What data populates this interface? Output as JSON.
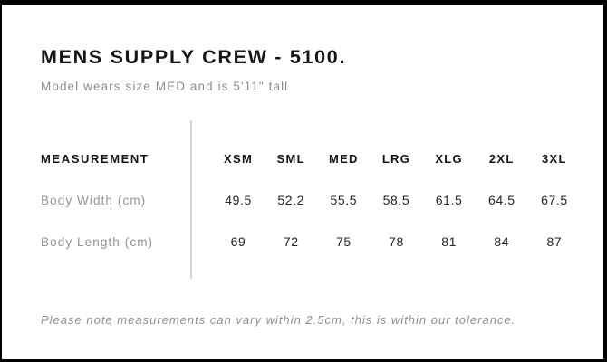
{
  "header": {
    "title": "MENS SUPPLY CREW - 5100.",
    "subtitle": "Model wears size MED and is 5'11\" tall"
  },
  "table": {
    "measurement_label": "MEASUREMENT",
    "sizes": [
      "XSM",
      "SML",
      "MED",
      "LRG",
      "XLG",
      "2XL",
      "3XL"
    ],
    "rows": [
      {
        "label": "Body Width (cm)",
        "values": [
          "49.5",
          "52.2",
          "55.5",
          "58.5",
          "61.5",
          "64.5",
          "67.5"
        ]
      },
      {
        "label": "Body Length (cm)",
        "values": [
          "69",
          "72",
          "75",
          "78",
          "81",
          "84",
          "87"
        ]
      }
    ]
  },
  "footer": {
    "note": "Please note measurements can vary within 2.5cm, this is within our tolerance."
  },
  "colors": {
    "frame_border": "#000000",
    "heading_text": "#161616",
    "muted_text": "#8e8e8e",
    "value_text": "#262626",
    "divider": "#d5d5d5",
    "background": "#ffffff"
  },
  "chart_data": {
    "type": "table",
    "title": "MENS SUPPLY CREW - 5100.",
    "columns": [
      "MEASUREMENT",
      "XSM",
      "SML",
      "MED",
      "LRG",
      "XLG",
      "2XL",
      "3XL"
    ],
    "rows": [
      [
        "Body Width (cm)",
        49.5,
        52.2,
        55.5,
        58.5,
        61.5,
        64.5,
        67.5
      ],
      [
        "Body Length (cm)",
        69,
        72,
        75,
        78,
        81,
        84,
        87
      ]
    ],
    "notes": "Please note measurements can vary within 2.5cm, this is within our tolerance."
  }
}
